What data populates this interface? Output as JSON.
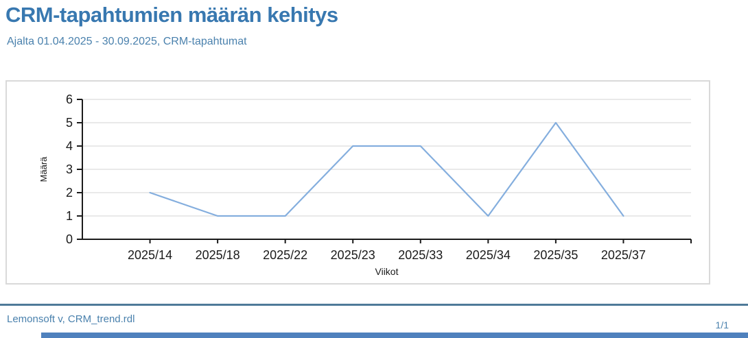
{
  "header": {
    "title": "CRM-tapahtumien määrän kehitys",
    "subtitle": "Ajalta 01.04.2025 - 30.09.2025, CRM-tapahtumat"
  },
  "chart_data": {
    "type": "line",
    "categories": [
      "2025/14",
      "2025/18",
      "2025/22",
      "2025/23",
      "2025/33",
      "2025/34",
      "2025/35",
      "2025/37"
    ],
    "values": [
      2,
      1,
      1,
      4,
      4,
      1,
      5,
      1
    ],
    "title": "",
    "xlabel": "Viikot",
    "ylabel": "Määrä",
    "ylim": [
      0,
      6
    ],
    "ytick_step": 1,
    "grid": true,
    "legend": "none",
    "line_color": "#84aede",
    "grid_color": "#e2e2e2",
    "axis_color": "#1a1a1a"
  },
  "footer": {
    "report_info": "Lemonsoft v, CRM_trend.rdl",
    "page_indicator": "1/1"
  },
  "colors": {
    "title_text": "#3878b0",
    "subtitle_text": "#4a81ad",
    "footer_rule": "#4e7a99",
    "bottom_bar": "#4f81bd"
  }
}
